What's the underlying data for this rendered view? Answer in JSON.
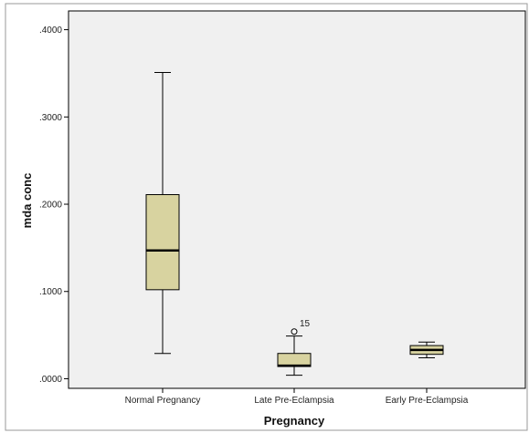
{
  "chart_data": {
    "type": "boxplot",
    "title": "",
    "xlabel": "Pregnancy",
    "ylabel": "mda conc",
    "ylim": [
      -0.011,
      0.4215
    ],
    "yticks": [
      0.0,
      0.1,
      0.2,
      0.3,
      0.4
    ],
    "ytick_labels": [
      ".0000",
      ".1000",
      ".2000",
      ".3000",
      ".4000"
    ],
    "grid": false,
    "categories": [
      "Normal Pregnancy",
      "Late Pre-Eclampsia",
      "Early Pre-Eclampsia"
    ],
    "boxes": [
      {
        "category": "Normal Pregnancy",
        "whisker_low": 0.029,
        "q1": 0.102,
        "median": 0.147,
        "q3": 0.211,
        "whisker_high": 0.351,
        "outliers": []
      },
      {
        "category": "Late Pre-Eclampsia",
        "whisker_low": 0.004,
        "q1": 0.014,
        "median": 0.015,
        "q3": 0.029,
        "whisker_high": 0.049,
        "outliers": [
          {
            "value": 0.054,
            "label": "15"
          }
        ]
      },
      {
        "category": "Early Pre-Eclampsia",
        "whisker_low": 0.024,
        "q1": 0.028,
        "median": 0.033,
        "q3": 0.038,
        "whisker_high": 0.042,
        "outliers": []
      }
    ],
    "colors": {
      "box_fill": "#d8d3a0",
      "plot_background": "#f0f0f0",
      "stroke": "#000000"
    }
  }
}
